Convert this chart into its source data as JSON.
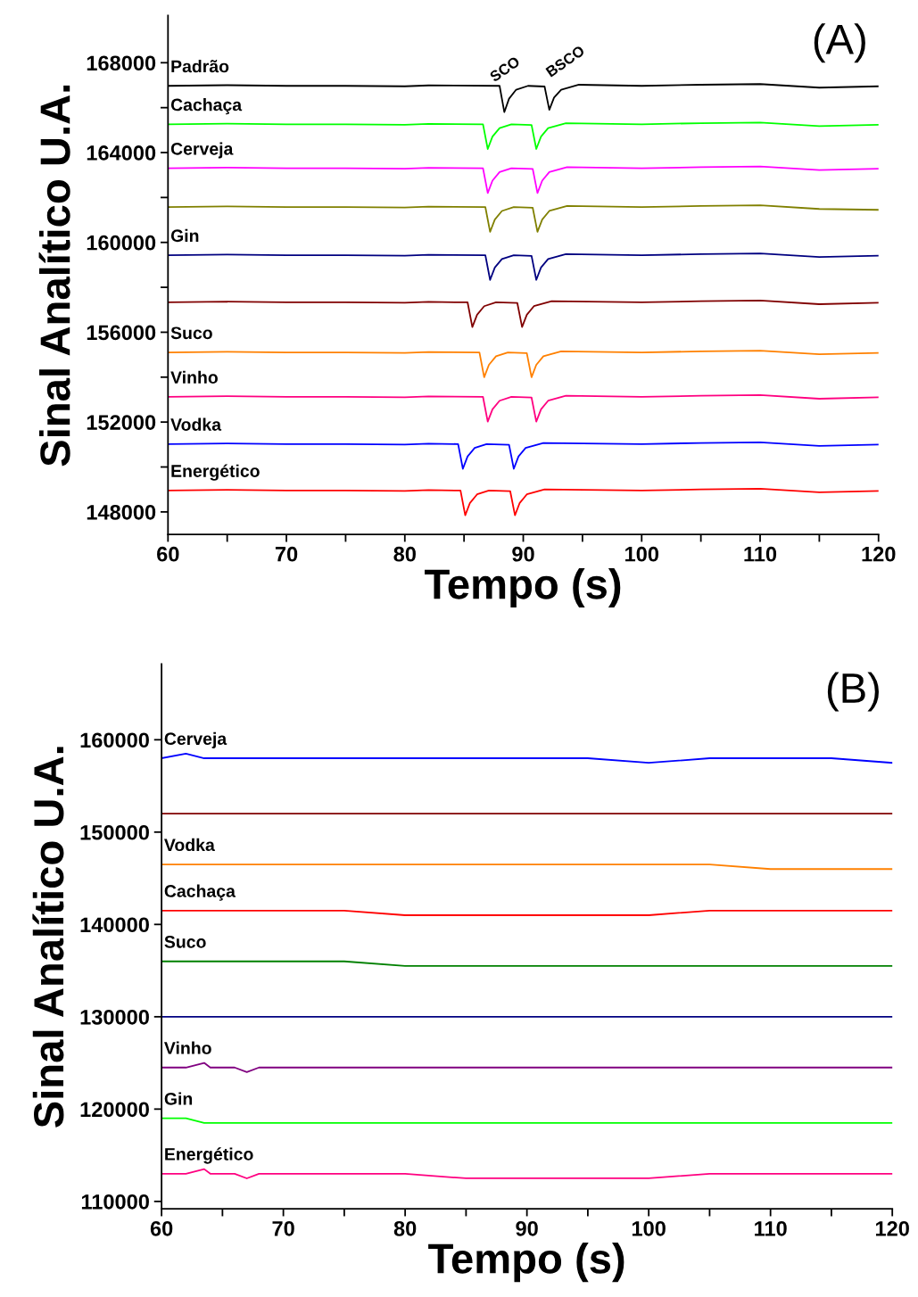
{
  "chart_data": [
    {
      "type": "line",
      "xlabel": "Tempo (s)",
      "ylabel": "Sinal Analítico U.A.",
      "xlim": [
        60,
        120
      ],
      "ylim": [
        147000,
        170100
      ],
      "xticks": [
        60,
        {
          "value": 65,
          "label": null
        },
        70,
        {
          "value": 75,
          "label": null
        },
        80,
        {
          "value": 85,
          "label": null
        },
        90,
        {
          "value": 95,
          "label": null
        },
        100,
        {
          "value": 105,
          "label": null
        },
        110,
        {
          "value": 115,
          "label": null
        },
        120
      ],
      "yticks": [
        148000,
        {
          "value": 150000,
          "label": null
        },
        152000,
        {
          "value": 154000,
          "label": null
        },
        156000,
        {
          "value": 158000,
          "label": null
        },
        160000,
        {
          "value": 162000,
          "label": null
        },
        164000,
        {
          "value": 166000,
          "label": null
        },
        168000
      ],
      "grid": false,
      "legend": false,
      "marker": "none",
      "line_style": "solid",
      "annotations": [
        "(A)",
        "SCO",
        "BSCO"
      ],
      "series": [
        {
          "name": "Padrão",
          "color": "#000000",
          "x": [
            60,
            65,
            70,
            75,
            80,
            82,
            88.0,
            88.4,
            88.8,
            89.4,
            90.4,
            91.8,
            92.2,
            92.6,
            93.2,
            94.7,
            100,
            105,
            110,
            115,
            120
          ],
          "values": [
            166970,
            167000,
            166970,
            166970,
            166950,
            166990,
            166970,
            165800,
            166400,
            166800,
            166970,
            166940,
            165900,
            166450,
            166800,
            167020,
            166970,
            167020,
            167050,
            166890,
            166950
          ]
        },
        {
          "name": "Cachaça",
          "color": "#00ff00",
          "x": [
            60,
            65,
            70,
            75,
            80,
            82,
            86.6,
            87.0,
            87.4,
            88.0,
            89.0,
            90.7,
            91.1,
            91.5,
            92.1,
            93.6,
            100,
            105,
            110,
            115,
            120
          ],
          "values": [
            165260,
            165290,
            165260,
            165260,
            165240,
            165280,
            165260,
            164160,
            164710,
            165090,
            165260,
            165230,
            164160,
            164710,
            165090,
            165310,
            165260,
            165310,
            165340,
            165180,
            165240
          ]
        },
        {
          "name": "Cerveja",
          "color": "#ff00ff",
          "x": [
            60,
            65,
            70,
            75,
            80,
            82,
            86.6,
            87.0,
            87.4,
            88.0,
            89.0,
            90.8,
            91.2,
            91.6,
            92.2,
            93.7,
            100,
            105,
            110,
            115,
            120
          ],
          "values": [
            163300,
            163330,
            163300,
            163300,
            163280,
            163320,
            163300,
            162200,
            162750,
            163130,
            163300,
            163270,
            162200,
            162750,
            163130,
            163350,
            163300,
            163350,
            163380,
            163220,
            163280
          ]
        },
        {
          "color": "#808000",
          "x": [
            60,
            65,
            70,
            75,
            80,
            82,
            86.8,
            87.2,
            87.6,
            88.2,
            89.2,
            90.8,
            91.2,
            91.6,
            92.2,
            93.7,
            100,
            105,
            110,
            115,
            120
          ],
          "values": [
            161570,
            161600,
            161570,
            161570,
            161550,
            161590,
            161570,
            160470,
            161020,
            161400,
            161570,
            161540,
            160470,
            161020,
            161400,
            161620,
            161570,
            161620,
            161650,
            161490,
            161450
          ]
        },
        {
          "name": "Gin",
          "color": "#000080",
          "x": [
            60,
            65,
            70,
            75,
            80,
            82,
            86.8,
            87.2,
            87.6,
            88.2,
            89.2,
            90.7,
            91.1,
            91.5,
            92.1,
            93.6,
            100,
            105,
            110,
            115,
            120
          ],
          "values": [
            159430,
            159460,
            159430,
            159430,
            159410,
            159450,
            159430,
            158330,
            158880,
            159260,
            159430,
            159400,
            158330,
            158880,
            159260,
            159480,
            159430,
            159480,
            159510,
            159350,
            159410
          ]
        },
        {
          "color": "#800000",
          "x": [
            60,
            65,
            70,
            75,
            80,
            82,
            85.3,
            85.7,
            86.1,
            86.7,
            87.7,
            89.5,
            89.9,
            90.3,
            90.9,
            92.4,
            100,
            105,
            110,
            115,
            120
          ],
          "values": [
            157330,
            157360,
            157330,
            157330,
            157310,
            157350,
            157330,
            156230,
            156780,
            157160,
            157330,
            157300,
            156230,
            156780,
            157160,
            157380,
            157330,
            157380,
            157410,
            157250,
            157310
          ]
        },
        {
          "name": "Suco",
          "color": "#ff8000",
          "x": [
            60,
            65,
            70,
            75,
            80,
            82,
            86.3,
            86.7,
            87.1,
            87.7,
            88.7,
            90.3,
            90.7,
            91.1,
            91.7,
            93.2,
            100,
            105,
            110,
            115,
            120
          ],
          "values": [
            155100,
            155130,
            155100,
            155100,
            155080,
            155120,
            155100,
            154000,
            154550,
            154930,
            155100,
            155070,
            154000,
            154550,
            154930,
            155150,
            155100,
            155150,
            155180,
            155020,
            155080
          ]
        },
        {
          "name": "Vinho",
          "color": "#ff0080",
          "x": [
            60,
            65,
            70,
            75,
            80,
            82,
            86.6,
            87.0,
            87.4,
            88.0,
            89.0,
            90.7,
            91.1,
            91.5,
            92.1,
            93.6,
            100,
            105,
            110,
            115,
            120
          ],
          "values": [
            153120,
            153150,
            153120,
            153120,
            153100,
            153140,
            153120,
            152020,
            152570,
            152950,
            153120,
            153090,
            152020,
            152570,
            152950,
            153170,
            153120,
            153170,
            153200,
            153040,
            153100
          ]
        },
        {
          "name": "Vodka",
          "color": "#0000ff",
          "x": [
            60,
            65,
            70,
            75,
            80,
            82,
            84.5,
            84.9,
            85.3,
            85.9,
            86.9,
            88.8,
            89.2,
            89.6,
            90.2,
            91.7,
            100,
            105,
            110,
            115,
            120
          ],
          "values": [
            151020,
            151050,
            151020,
            151020,
            151000,
            151040,
            151020,
            149920,
            150470,
            150850,
            151020,
            150990,
            149920,
            150470,
            150850,
            151070,
            151020,
            151070,
            151100,
            150940,
            151000
          ]
        },
        {
          "name": "Energético",
          "color": "#ff0000",
          "x": [
            60,
            65,
            70,
            75,
            80,
            82,
            84.7,
            85.1,
            85.5,
            86.1,
            87.1,
            88.9,
            89.3,
            89.7,
            90.3,
            91.8,
            100,
            105,
            110,
            115,
            120
          ],
          "values": [
            148950,
            148980,
            148950,
            148950,
            148930,
            148970,
            148950,
            147850,
            148400,
            148780,
            148950,
            148920,
            147850,
            148400,
            148780,
            149000,
            148950,
            149000,
            149030,
            148870,
            148930
          ]
        }
      ]
    },
    {
      "type": "line",
      "xlabel": "Tempo (s)",
      "ylabel": "Sinal Analítico U.A.",
      "xlim": [
        60,
        120
      ],
      "ylim": [
        109200,
        168200
      ],
      "xticks": [
        60,
        {
          "value": 65,
          "label": null
        },
        70,
        {
          "value": 75,
          "label": null
        },
        80,
        {
          "value": 85,
          "label": null
        },
        90,
        {
          "value": 95,
          "label": null
        },
        100,
        {
          "value": 105,
          "label": null
        },
        110,
        {
          "value": 115,
          "label": null
        },
        120
      ],
      "yticks": [
        110000,
        120000,
        130000,
        140000,
        150000,
        160000
      ],
      "grid": false,
      "legend": false,
      "marker": "none",
      "line_style": "solid",
      "annotations": [
        "(B)"
      ],
      "x": [
        60,
        62,
        63.5,
        64,
        66,
        67,
        68,
        70,
        75,
        80,
        85,
        90,
        93,
        95,
        100,
        105,
        110,
        115,
        120
      ],
      "series": [
        {
          "name": "Cerveja",
          "color": "#0000ff",
          "values": [
            158000,
            158500,
            158000,
            158000,
            158000,
            158000,
            158000,
            158000,
            158000,
            158000,
            158000,
            158000,
            158000,
            158000,
            157500,
            158000,
            158000,
            158000,
            157500
          ]
        },
        {
          "color": "#800000",
          "values": [
            152000,
            152000,
            152000,
            152000,
            152000,
            152000,
            152000,
            152000,
            152000,
            152000,
            152000,
            152000,
            152000,
            152000,
            152000,
            152000,
            152000,
            152000,
            152000
          ]
        },
        {
          "name": "Vodka",
          "color": "#ff8000",
          "values": [
            146500,
            146500,
            146500,
            146500,
            146500,
            146500,
            146500,
            146500,
            146500,
            146500,
            146500,
            146500,
            146500,
            146500,
            146500,
            146500,
            146000,
            146000,
            146000
          ]
        },
        {
          "name": "Cachaça",
          "color": "#ff0000",
          "values": [
            141500,
            141500,
            141500,
            141500,
            141500,
            141500,
            141500,
            141500,
            141500,
            141000,
            141000,
            141000,
            141000,
            141000,
            141000,
            141500,
            141500,
            141500,
            141500
          ]
        },
        {
          "name": "Suco",
          "color": "#008000",
          "values": [
            136000,
            136000,
            136000,
            136000,
            136000,
            136000,
            136000,
            136000,
            136000,
            135500,
            135500,
            135500,
            135500,
            135500,
            135500,
            135500,
            135500,
            135500,
            135500
          ]
        },
        {
          "color": "#000080",
          "values": [
            130000,
            130000,
            130000,
            130000,
            130000,
            130000,
            130000,
            130000,
            130000,
            130000,
            130000,
            130000,
            130000,
            130000,
            130000,
            130000,
            130000,
            130000,
            130000
          ]
        },
        {
          "name": "Vinho",
          "color": "#800080",
          "values": [
            124500,
            124500,
            125000,
            124500,
            124500,
            124000,
            124500,
            124500,
            124500,
            124500,
            124500,
            124500,
            124500,
            124500,
            124500,
            124500,
            124500,
            124500,
            124500
          ]
        },
        {
          "name": "Gin",
          "color": "#00ff00",
          "values": [
            119000,
            119000,
            118500,
            118500,
            118500,
            118500,
            118500,
            118500,
            118500,
            118500,
            118500,
            118500,
            118500,
            118500,
            118500,
            118500,
            118500,
            118500,
            118500
          ]
        },
        {
          "name": "Energético",
          "color": "#ff0080",
          "values": [
            113000,
            113000,
            113500,
            113000,
            113000,
            112500,
            113000,
            113000,
            113000,
            113000,
            112500,
            112500,
            112500,
            112500,
            112500,
            113000,
            113000,
            113000,
            113000
          ]
        }
      ]
    }
  ]
}
